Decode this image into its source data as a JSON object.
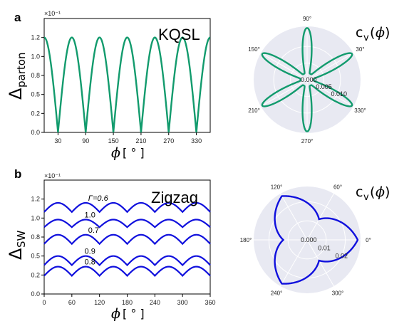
{
  "panels": {
    "a": {
      "letter": "a",
      "label": "KQSL",
      "ylabel_main": "Δ",
      "ylabel_sub": "parton",
      "offset_text": "×10⁻¹",
      "xlabel": "ϕ",
      "xlabel_unit": "[ ° ]",
      "polar_title_main": "c",
      "polar_title_sub": "v",
      "polar_title_arg": "ϕ"
    },
    "b": {
      "letter": "b",
      "label": "Zigzag",
      "ylabel_main": "Δ",
      "ylabel_sub": "SW",
      "offset_text": "×10⁻¹",
      "xlabel": "ϕ",
      "xlabel_unit": "[ ° ]",
      "polar_title_main": "c",
      "polar_title_sub": "v",
      "polar_title_arg": "ϕ"
    }
  },
  "colors": {
    "kqsl": "#129b6d",
    "zigzag": "#1010dd",
    "polar_bg": "#e8e9f2",
    "grid": "#ffffff"
  },
  "chart_data": [
    {
      "type": "line",
      "id": "kqsl_gap",
      "title": "KQSL",
      "xlabel": "ϕ [ ° ]",
      "ylabel": "Δ_parton",
      "y_scale_note": "×10⁻¹",
      "xlim": [
        0,
        360
      ],
      "ylim": [
        0,
        1.5
      ],
      "xticks": [
        30,
        90,
        150,
        210,
        270,
        330
      ],
      "yticks": [
        0.0,
        0.25,
        0.5,
        0.75,
        1.0,
        1.25
      ],
      "ytick_labels": [
        "0.0",
        "0.2",
        "0.5",
        "0.8",
        "1.0",
        "1.2"
      ],
      "series": [
        {
          "amplitude": 1.25,
          "zeros_at": [
            30,
            90,
            150,
            210,
            270,
            330
          ]
        }
      ]
    },
    {
      "type": "line",
      "id": "zigzag_gap",
      "title": "Zigzag",
      "xlabel": "ϕ [ ° ]",
      "ylabel": "Δ_SW",
      "y_scale_note": "×10⁻¹",
      "xlim": [
        0,
        360
      ],
      "ylim": [
        0,
        1.5
      ],
      "xticks": [
        0,
        60,
        120,
        180,
        240,
        300,
        360
      ],
      "yticks": [
        0.0,
        0.25,
        0.5,
        0.75,
        1.0,
        1.25
      ],
      "ytick_labels": [
        "0.0",
        "0.2",
        "0.5",
        "0.8",
        "1.0",
        "1.2"
      ],
      "series": [
        {
          "name": "Γ=0.6",
          "base": 1.08,
          "amplitude": 0.12
        },
        {
          "name": "1.0",
          "base": 0.88,
          "amplitude": 0.1
        },
        {
          "name": "0.7",
          "base": 0.66,
          "amplitude": 0.12
        },
        {
          "name": "0.9",
          "base": 0.38,
          "amplitude": 0.12
        },
        {
          "name": "0.8",
          "base": 0.24,
          "amplitude": 0.12
        }
      ]
    },
    {
      "type": "polar",
      "id": "kqsl_velocity",
      "title": "c_v(ϕ)",
      "rmax": 0.016,
      "rticks": [
        0.0,
        0.005,
        0.01
      ],
      "rtick_labels": [
        "0.000",
        "0.005",
        "0.010"
      ],
      "angle_labels": [
        "90°",
        "30°",
        "330°",
        "270°",
        "210°",
        "150°"
      ],
      "petal_angles": [
        90,
        30,
        330,
        270,
        210,
        150
      ],
      "r_peak": 0.0155,
      "r_min": 0.002
    },
    {
      "type": "polar",
      "id": "zigzag_velocity",
      "title": "c_v(ϕ)",
      "rmax": 0.028,
      "rticks": [
        0.0,
        0.01,
        0.02
      ],
      "rtick_labels": [
        "0.000",
        "0.01",
        "0.02"
      ],
      "angle_labels": [
        "60°",
        "0°",
        "300°",
        "240°",
        "180°",
        "120°"
      ],
      "peak_angles": [
        0,
        60,
        120,
        180,
        240,
        300
      ],
      "r_peak": 0.0265,
      "r_valley": 0.0125
    }
  ]
}
